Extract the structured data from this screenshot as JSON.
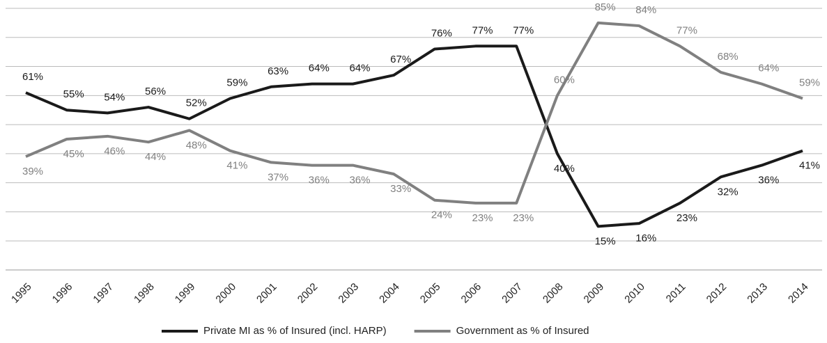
{
  "chart_data": {
    "type": "line",
    "categories": [
      "1995",
      "1996",
      "1997",
      "1998",
      "1999",
      "2000",
      "2001",
      "2002",
      "2003",
      "2004",
      "2005",
      "2006",
      "2007",
      "2008",
      "2009",
      "2010",
      "2011",
      "2012",
      "2013",
      "2014"
    ],
    "series": [
      {
        "name": "Private MI as % of Insured (incl. HARP)",
        "color": "#1a1a1a",
        "values": [
          61,
          55,
          54,
          56,
          52,
          59,
          63,
          64,
          64,
          67,
          76,
          77,
          77,
          40,
          15,
          16,
          23,
          32,
          36,
          41
        ],
        "value_labels": [
          "61%",
          "55%",
          "54%",
          "56%",
          "52%",
          "59%",
          "63%",
          "64%",
          "64%",
          "67%",
          "76%",
          "77%",
          "77%",
          "40%",
          "15%",
          "16%",
          "23%",
          "32%",
          "36%",
          "41%"
        ]
      },
      {
        "name": "Government as % of Insured",
        "color": "#808080",
        "values": [
          39,
          45,
          46,
          44,
          48,
          41,
          37,
          36,
          36,
          33,
          24,
          23,
          23,
          60,
          85,
          84,
          77,
          68,
          64,
          59
        ],
        "value_labels": [
          "39%",
          "45%",
          "46%",
          "44%",
          "48%",
          "41%",
          "37%",
          "36%",
          "36%",
          "33%",
          "24%",
          "23%",
          "23%",
          "60%",
          "85%",
          "84%",
          "77%",
          "68%",
          "64%",
          "59%"
        ]
      }
    ],
    "ylim": [
      0,
      90
    ],
    "yticks": [
      0,
      10,
      20,
      30,
      40,
      50,
      60,
      70,
      80,
      90
    ],
    "grid": true,
    "legend": "bottom"
  }
}
